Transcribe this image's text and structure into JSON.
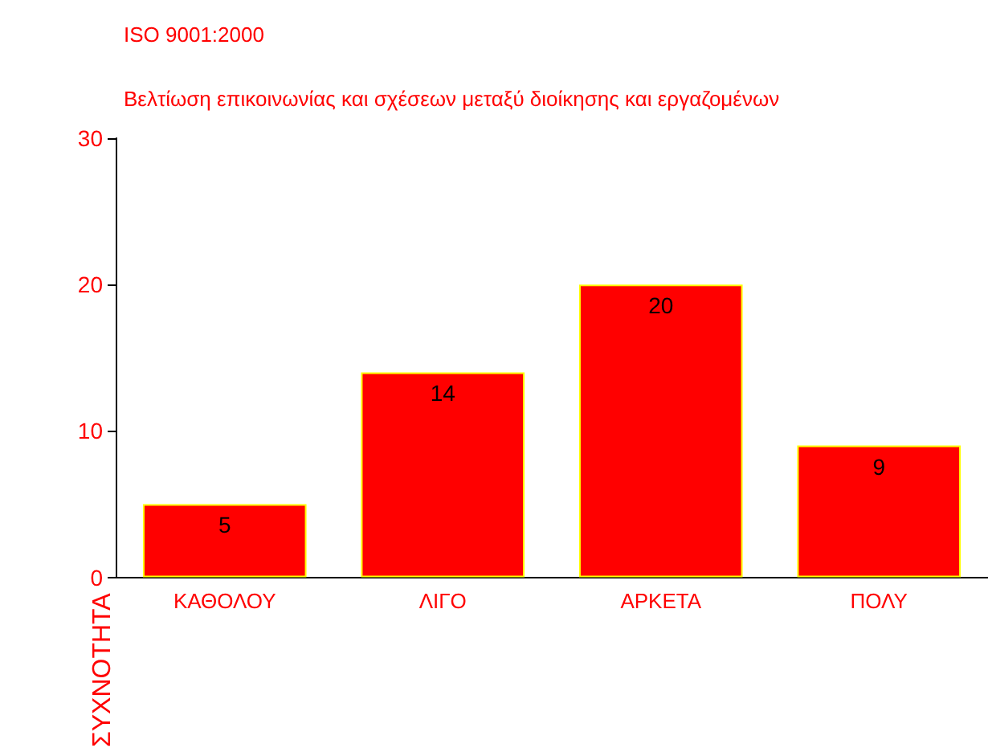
{
  "chart_data": {
    "type": "bar",
    "title": "ISO 9001:2000",
    "subtitle": "Βελτίωση επικοινωνίας και σχέσεων μεταξύ διοίκησης και εργαζομένων",
    "ylabel": "ΣΥΧΝΟΤΗΤΑ",
    "categories": [
      "ΚΑΘΟΛΟΥ",
      "ΛΙΓΟ",
      "ΑΡΚΕΤΑ",
      "ΠΟΛΥ"
    ],
    "values": [
      5,
      14,
      20,
      9
    ],
    "color": "#ff0000",
    "ylim": [
      0,
      30
    ],
    "yticks": [
      0,
      10,
      20,
      30
    ],
    "grid": false,
    "data_labels": true
  }
}
